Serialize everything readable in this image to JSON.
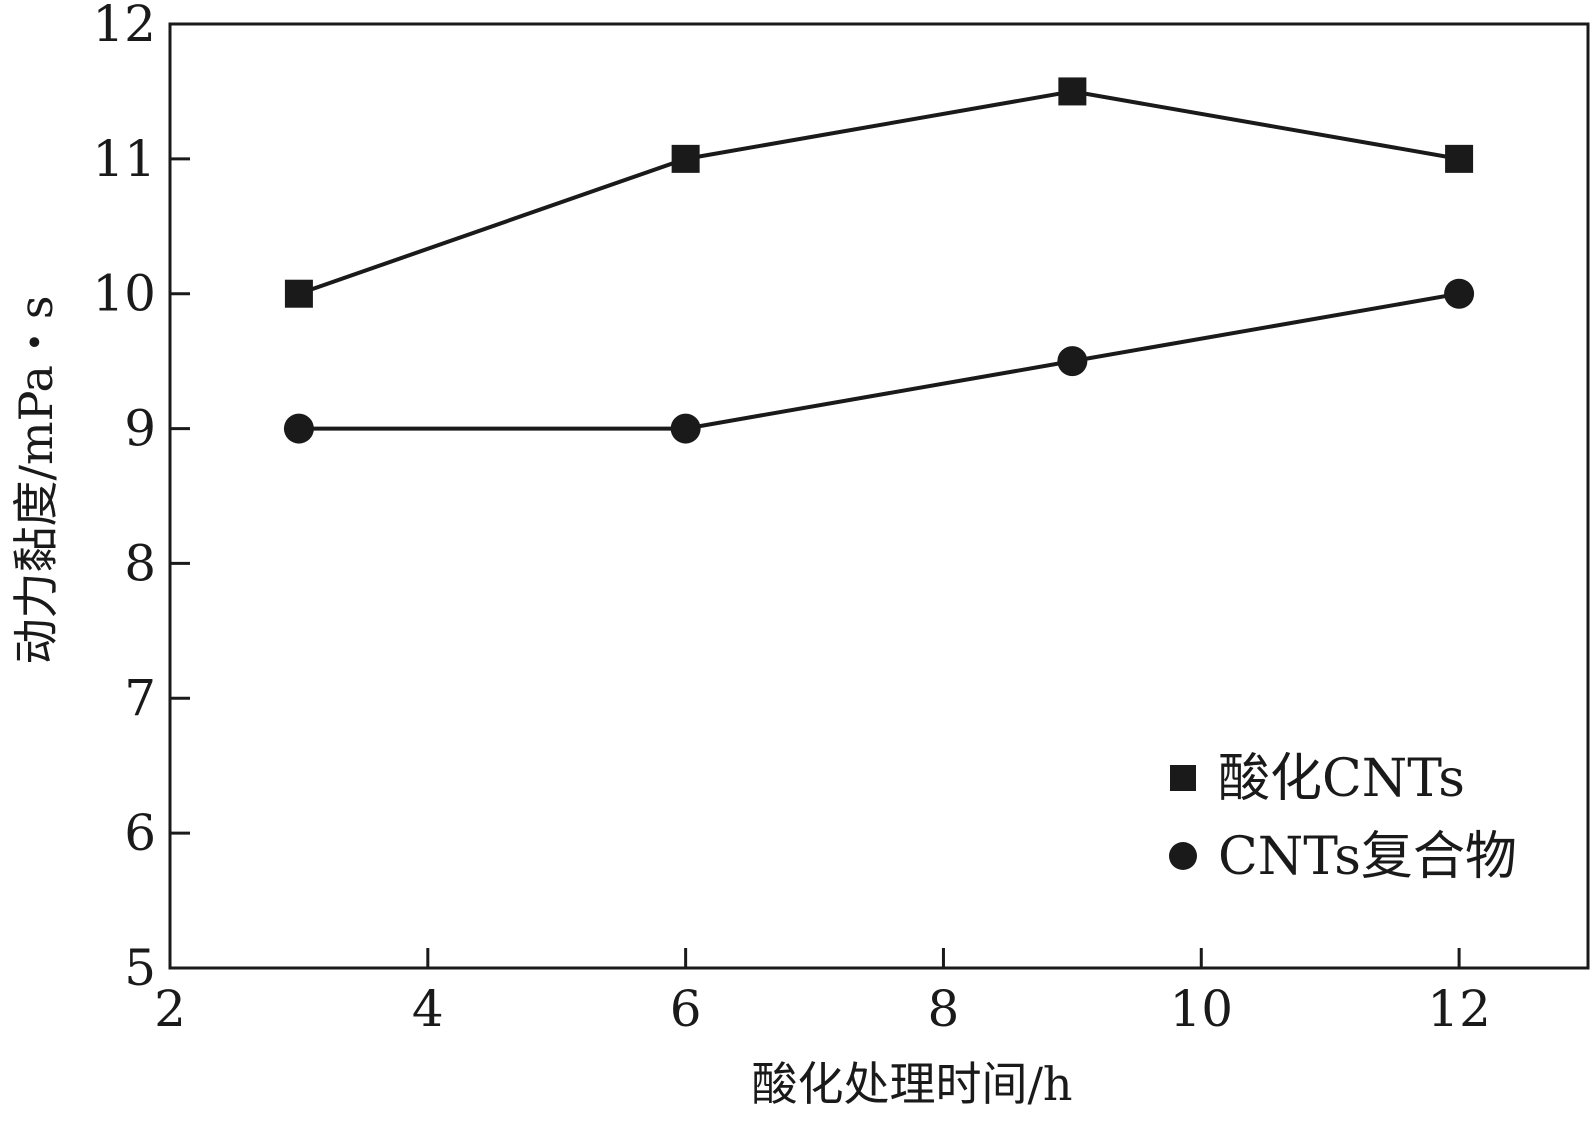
{
  "chart_data": {
    "type": "line",
    "title": "",
    "xlabel": "酸化处理时间/h",
    "ylabel": "动力黏度/mPa・s",
    "xlim": [
      2,
      13
    ],
    "ylim": [
      5,
      12
    ],
    "xticks": [
      2,
      4,
      6,
      8,
      10,
      12
    ],
    "yticks": [
      5,
      6,
      7,
      8,
      9,
      10,
      11,
      12
    ],
    "grid": false,
    "legend_position": "bottom-right",
    "series": [
      {
        "name": "酸化CNTs",
        "marker": "square",
        "color": "#1a1a1a",
        "x": [
          3,
          6,
          9,
          12
        ],
        "y": [
          10,
          11,
          11.5,
          11
        ]
      },
      {
        "name": "CNTs复合物",
        "marker": "circle",
        "color": "#1a1a1a",
        "x": [
          3,
          6,
          9,
          12
        ],
        "y": [
          9,
          9,
          9.5,
          10
        ]
      }
    ]
  }
}
